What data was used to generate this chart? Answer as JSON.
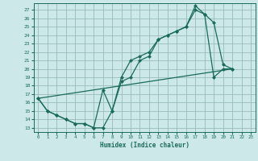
{
  "xlabel": "Humidex (Indice chaleur)",
  "background_color": "#cce8e8",
  "grid_color": "#99bbbb",
  "line_color": "#1a6b5a",
  "xlim": [
    -0.5,
    23.5
  ],
  "ylim": [
    12.5,
    27.8
  ],
  "xticks": [
    0,
    1,
    2,
    3,
    4,
    5,
    6,
    7,
    8,
    9,
    10,
    11,
    12,
    13,
    14,
    15,
    16,
    17,
    18,
    19,
    20,
    21,
    22,
    23
  ],
  "yticks": [
    13,
    14,
    15,
    16,
    17,
    18,
    19,
    20,
    21,
    22,
    23,
    24,
    25,
    26,
    27
  ],
  "line1_x": [
    0,
    1,
    2,
    3,
    4,
    5,
    6,
    7,
    8,
    9,
    10,
    11,
    12,
    13,
    14,
    15,
    16,
    17,
    18,
    19,
    20,
    21
  ],
  "line1_y": [
    16.5,
    15.0,
    14.5,
    14.0,
    13.5,
    13.5,
    13.0,
    13.0,
    15.0,
    18.5,
    19.0,
    21.0,
    21.5,
    23.5,
    24.0,
    24.5,
    25.0,
    27.0,
    26.5,
    25.5,
    20.5,
    20.0
  ],
  "line2_x": [
    0,
    1,
    2,
    3,
    4,
    5,
    6,
    7,
    8,
    9,
    10,
    11,
    12,
    13,
    14,
    15,
    16,
    17,
    18,
    19,
    20,
    21
  ],
  "line2_y": [
    16.5,
    15.0,
    14.5,
    14.0,
    13.5,
    13.5,
    13.0,
    17.5,
    15.0,
    19.0,
    21.0,
    21.5,
    22.0,
    23.5,
    24.0,
    24.5,
    25.0,
    27.5,
    26.5,
    19.0,
    20.0,
    20.0
  ],
  "line3_x": [
    0,
    21
  ],
  "line3_y": [
    16.5,
    20.0
  ]
}
